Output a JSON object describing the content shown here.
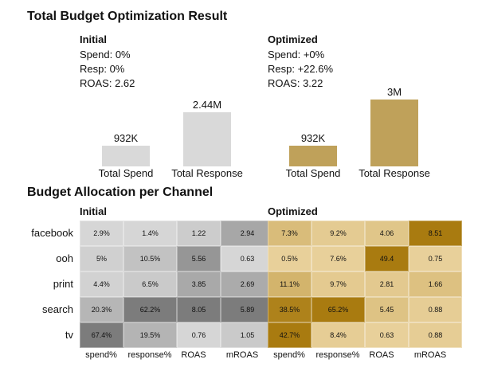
{
  "title": "Total Budget Optimization Result",
  "initial": {
    "heading": "Initial",
    "spend": "Spend: 0%",
    "resp": "Resp: 0%",
    "roas": "ROAS: 2.62",
    "bars": [
      {
        "label": "Total Spend",
        "value_text": "932K",
        "value": 932000
      },
      {
        "label": "Total Response",
        "value_text": "2.44M",
        "value": 2440000
      }
    ]
  },
  "optimized": {
    "heading": "Optimized",
    "spend": "Spend: +0%",
    "resp": "Resp: +22.6%",
    "roas": "ROAS: 3.22",
    "bars": [
      {
        "label": "Total Spend",
        "value_text": "932K",
        "value": 932000
      },
      {
        "label": "Total Response",
        "value_text": "3M",
        "value": 3000000
      }
    ]
  },
  "allocation": {
    "title": "Budget Allocation per Channel",
    "initial_heading": "Initial",
    "optimized_heading": "Optimized",
    "channels": [
      "facebook",
      "ooh",
      "print",
      "search",
      "tv"
    ],
    "columns": [
      "spend%",
      "response%",
      "ROAS",
      "mROAS"
    ],
    "initial_values": [
      [
        "2.9%",
        "1.4%",
        "1.22",
        "2.94"
      ],
      [
        "5%",
        "10.5%",
        "5.56",
        "0.63"
      ],
      [
        "4.4%",
        "6.5%",
        "3.85",
        "2.69"
      ],
      [
        "20.3%",
        "62.2%",
        "8.05",
        "5.89"
      ],
      [
        "67.4%",
        "19.5%",
        "0.76",
        "1.05"
      ]
    ],
    "optimized_values": [
      [
        "7.3%",
        "9.2%",
        "4.06",
        "8.51"
      ],
      [
        "0.5%",
        "7.6%",
        "49.4",
        "0.75"
      ],
      [
        "11.1%",
        "9.7%",
        "2.81",
        "1.66"
      ],
      [
        "38.5%",
        "65.2%",
        "5.45",
        "0.88"
      ],
      [
        "42.7%",
        "8.4%",
        "0.63",
        "0.88"
      ]
    ]
  },
  "colors": {
    "initial_bar": "#d9d9d9",
    "optimized_bar": "#bfa15a",
    "initial_heat_low": "#d6d6d6",
    "initial_heat_high": "#7c7c7c",
    "optimized_heat_low": "#e8d09a",
    "optimized_heat_high": "#a97b10"
  },
  "chart_data": [
    {
      "type": "bar",
      "title": "Initial",
      "categories": [
        "Total Spend",
        "Total Response"
      ],
      "values": [
        932000,
        2440000
      ],
      "data_labels": [
        "932K",
        "2.44M"
      ]
    },
    {
      "type": "bar",
      "title": "Optimized",
      "categories": [
        "Total Spend",
        "Total Response"
      ],
      "values": [
        932000,
        3000000
      ],
      "data_labels": [
        "932K",
        "3M"
      ]
    },
    {
      "type": "heatmap",
      "title": "Initial",
      "rows": [
        "facebook",
        "ooh",
        "print",
        "search",
        "tv"
      ],
      "columns": [
        "spend%",
        "response%",
        "ROAS",
        "mROAS"
      ],
      "values": [
        [
          2.9,
          1.4,
          1.22,
          2.94
        ],
        [
          5,
          10.5,
          5.56,
          0.63
        ],
        [
          4.4,
          6.5,
          3.85,
          2.69
        ],
        [
          20.3,
          62.2,
          8.05,
          5.89
        ],
        [
          67.4,
          19.5,
          0.76,
          1.05
        ]
      ]
    },
    {
      "type": "heatmap",
      "title": "Optimized",
      "rows": [
        "facebook",
        "ooh",
        "print",
        "search",
        "tv"
      ],
      "columns": [
        "spend%",
        "response%",
        "ROAS",
        "mROAS"
      ],
      "values": [
        [
          7.3,
          9.2,
          4.06,
          8.51
        ],
        [
          0.5,
          7.6,
          49.4,
          0.75
        ],
        [
          11.1,
          9.7,
          2.81,
          1.66
        ],
        [
          38.5,
          65.2,
          5.45,
          0.88
        ],
        [
          42.7,
          8.4,
          0.63,
          0.88
        ]
      ]
    }
  ]
}
